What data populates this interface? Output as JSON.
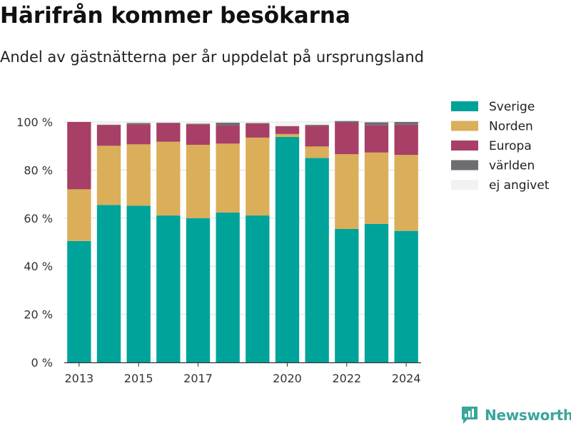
{
  "title": "Härifrån kommer besökarna",
  "subtitle": "Andel av gästnätterna per år uppdelat på ursprungsland",
  "brand": {
    "name": "Newsworthy"
  },
  "chart_data": {
    "type": "bar",
    "stacked": true,
    "categories": [
      "2013",
      "2014",
      "2015",
      "2016",
      "2017",
      "2018",
      "2019",
      "2020",
      "2021",
      "2022",
      "2023",
      "2024"
    ],
    "x_tick_labels": [
      "2013",
      "",
      "2015",
      "",
      "2017",
      "",
      "",
      "2020",
      "",
      "2022",
      "",
      "2024"
    ],
    "series": [
      {
        "name": "Sverige",
        "color": "#00a39a",
        "values": [
          50.5,
          65.5,
          65.2,
          61.1,
          60.0,
          62.3,
          61.1,
          93.8,
          85.0,
          55.5,
          57.6,
          54.7
        ]
      },
      {
        "name": "Norden",
        "color": "#dbae5a",
        "values": [
          21.5,
          24.6,
          25.5,
          30.7,
          30.5,
          28.7,
          32.4,
          1.2,
          4.8,
          31.1,
          29.7,
          31.6
        ]
      },
      {
        "name": "Europa",
        "color": "#a73f66",
        "values": [
          28.0,
          8.6,
          8.3,
          7.7,
          8.5,
          7.5,
          5.8,
          3.3,
          8.6,
          13.1,
          11.3,
          12.6
        ]
      },
      {
        "name": "världen",
        "color": "#6d6e71",
        "values": [
          0.0,
          0.2,
          0.6,
          0.2,
          0.3,
          1.2,
          0.3,
          0.0,
          0.4,
          0.7,
          1.3,
          1.1
        ]
      },
      {
        "name": "ej angivet",
        "color": "#f2f2f2",
        "values": [
          0.0,
          1.1,
          0.4,
          0.3,
          0.7,
          0.3,
          0.4,
          1.7,
          1.2,
          0.0,
          0.1,
          0.0
        ]
      }
    ],
    "y_ticks": [
      "0 %",
      "20 %",
      "40 %",
      "60 %",
      "80 %",
      "100 %"
    ],
    "ylim": [
      0,
      100
    ],
    "grid": true,
    "legend": "right"
  }
}
